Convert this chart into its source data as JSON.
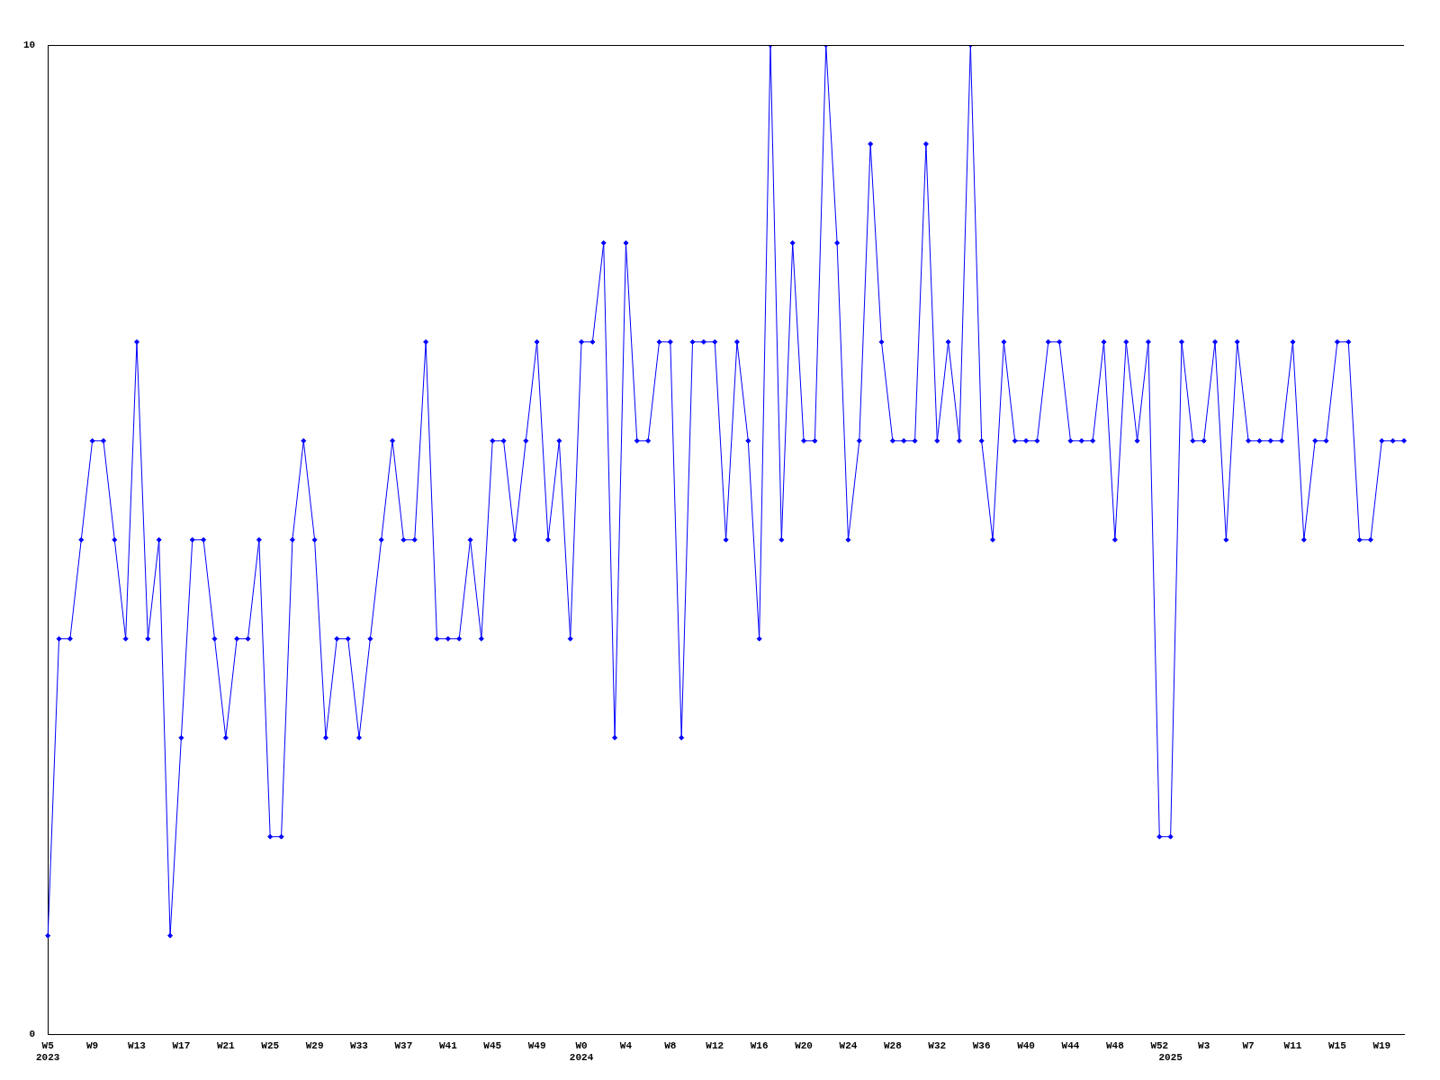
{
  "chart_data": {
    "type": "line",
    "categories": [
      "W5\n2023",
      null,
      null,
      null,
      "W9",
      null,
      null,
      null,
      "W13",
      null,
      null,
      null,
      "W17",
      null,
      null,
      null,
      "W21",
      null,
      null,
      null,
      "W25",
      null,
      null,
      null,
      "W29",
      null,
      null,
      null,
      "W33",
      null,
      null,
      null,
      "W37",
      null,
      null,
      null,
      "W41",
      null,
      null,
      null,
      "W45",
      null,
      null,
      null,
      "W49",
      null,
      null,
      null,
      "W0\n2024",
      null,
      null,
      null,
      "W4",
      null,
      null,
      null,
      "W8",
      null,
      null,
      null,
      "W12",
      null,
      null,
      null,
      "W16",
      null,
      null,
      null,
      "W20",
      null,
      null,
      null,
      "W24",
      null,
      null,
      null,
      "W28",
      null,
      null,
      null,
      "W32",
      null,
      null,
      null,
      "W36",
      null,
      null,
      null,
      "W40",
      null,
      null,
      null,
      "W44",
      null,
      null,
      null,
      "W48",
      null,
      null,
      null,
      "W52",
      "\n2025",
      null,
      null,
      "W3",
      null,
      null,
      null,
      "W7",
      null,
      null,
      null,
      "W11",
      null,
      null,
      null,
      "W15",
      null,
      null,
      null,
      "W19",
      null,
      null
    ],
    "values": [
      1,
      4,
      4,
      5,
      6,
      6,
      5,
      4,
      7,
      4,
      5,
      1,
      3,
      5,
      5,
      4,
      3,
      4,
      4,
      5,
      2,
      2,
      5,
      6,
      5,
      3,
      4,
      4,
      3,
      4,
      5,
      6,
      5,
      5,
      7,
      4,
      4,
      4,
      5,
      4,
      6,
      6,
      5,
      6,
      7,
      5,
      6,
      4,
      7,
      7,
      8,
      3,
      8,
      6,
      6,
      7,
      7,
      3,
      7,
      7,
      7,
      5,
      7,
      6,
      4,
      10,
      5,
      8,
      6,
      6,
      10,
      8,
      5,
      6,
      9,
      7,
      6,
      6,
      6,
      9,
      6,
      7,
      6,
      10,
      6,
      5,
      7,
      6,
      6,
      6,
      7,
      7,
      6,
      6,
      6,
      7,
      5,
      7,
      6,
      7,
      2,
      2,
      7,
      6,
      6,
      7,
      5,
      7,
      6,
      6,
      6,
      6,
      7,
      5,
      6,
      6,
      7,
      7,
      5,
      5,
      6,
      6,
      6
    ],
    "color": "#0000ff",
    "marker": "diamond",
    "line_style": "solid",
    "ylim": [
      0,
      10
    ],
    "yticks": [
      0,
      10
    ],
    "grid": false
  }
}
